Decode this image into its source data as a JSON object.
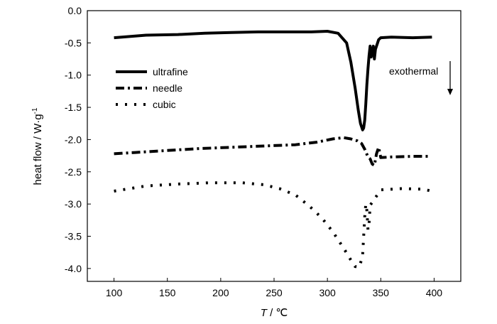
{
  "chart_data": {
    "type": "line",
    "title": "",
    "xlabel": "T / ℃",
    "xlabel_italic": "T",
    "xlabel_unit": " / ℃",
    "ylabel": "heat flow / W·g⁻¹",
    "xlim": [
      75,
      425
    ],
    "ylim": [
      -4.2,
      0.0
    ],
    "xticks": [
      100,
      150,
      200,
      250,
      300,
      350,
      400
    ],
    "yticks": [
      0.0,
      -0.5,
      -1.0,
      -1.5,
      -2.0,
      -2.5,
      -3.0,
      -3.5,
      -4.0
    ],
    "ytick_labels": [
      "0.0",
      "-0.5",
      "-1.0",
      "-1.5",
      "-2.0",
      "-2.5",
      "-3.0",
      "-3.5",
      "-4.0"
    ],
    "grid": false,
    "legend_position": "upper-left",
    "annotation": {
      "text": "exothermal",
      "arrow": "down"
    },
    "series": [
      {
        "name": "ultrafine",
        "style": "solid",
        "x": [
          100,
          130,
          160,
          185,
          210,
          235,
          260,
          285,
          300,
          310,
          318,
          322,
          326,
          329,
          331,
          333,
          334,
          335,
          336,
          337,
          338,
          339,
          340,
          341,
          342,
          343,
          344,
          345,
          346,
          347,
          348,
          350,
          360,
          380,
          398
        ],
        "y": [
          -0.42,
          -0.38,
          -0.37,
          -0.35,
          -0.34,
          -0.33,
          -0.33,
          -0.33,
          -0.32,
          -0.35,
          -0.5,
          -0.8,
          -1.2,
          -1.55,
          -1.75,
          -1.85,
          -1.82,
          -1.7,
          -1.45,
          -1.15,
          -0.9,
          -0.7,
          -0.55,
          -0.72,
          -0.62,
          -0.55,
          -0.75,
          -0.6,
          -0.55,
          -0.5,
          -0.45,
          -0.42,
          -0.41,
          -0.42,
          -0.41
        ]
      },
      {
        "name": "needle",
        "style": "dashdot",
        "x": [
          100,
          120,
          150,
          180,
          210,
          240,
          270,
          290,
          305,
          315,
          322,
          328,
          332,
          335,
          338,
          340,
          342,
          344,
          346,
          348,
          350,
          360,
          380,
          395
        ],
        "y": [
          -2.22,
          -2.2,
          -2.17,
          -2.14,
          -2.12,
          -2.1,
          -2.08,
          -2.04,
          -1.99,
          -1.97,
          -1.99,
          -2.02,
          -2.06,
          -2.15,
          -2.27,
          -2.3,
          -2.38,
          -2.4,
          -2.22,
          -2.12,
          -2.28,
          -2.27,
          -2.26,
          -2.26
        ]
      },
      {
        "name": "cubic",
        "style": "dotted",
        "x": [
          100,
          130,
          160,
          190,
          220,
          240,
          255,
          270,
          283,
          295,
          305,
          315,
          322,
          326,
          330,
          333,
          334,
          335,
          336,
          337,
          338,
          339,
          340,
          350,
          370,
          390,
          398
        ],
        "y": [
          -2.8,
          -2.72,
          -2.69,
          -2.67,
          -2.67,
          -2.7,
          -2.76,
          -2.86,
          -3.03,
          -3.22,
          -3.43,
          -3.68,
          -3.87,
          -3.97,
          -3.98,
          -3.8,
          -3.5,
          -3.2,
          -3.0,
          -3.1,
          -3.4,
          -3.3,
          -3.02,
          -2.78,
          -2.76,
          -2.77,
          -2.8
        ]
      }
    ]
  }
}
